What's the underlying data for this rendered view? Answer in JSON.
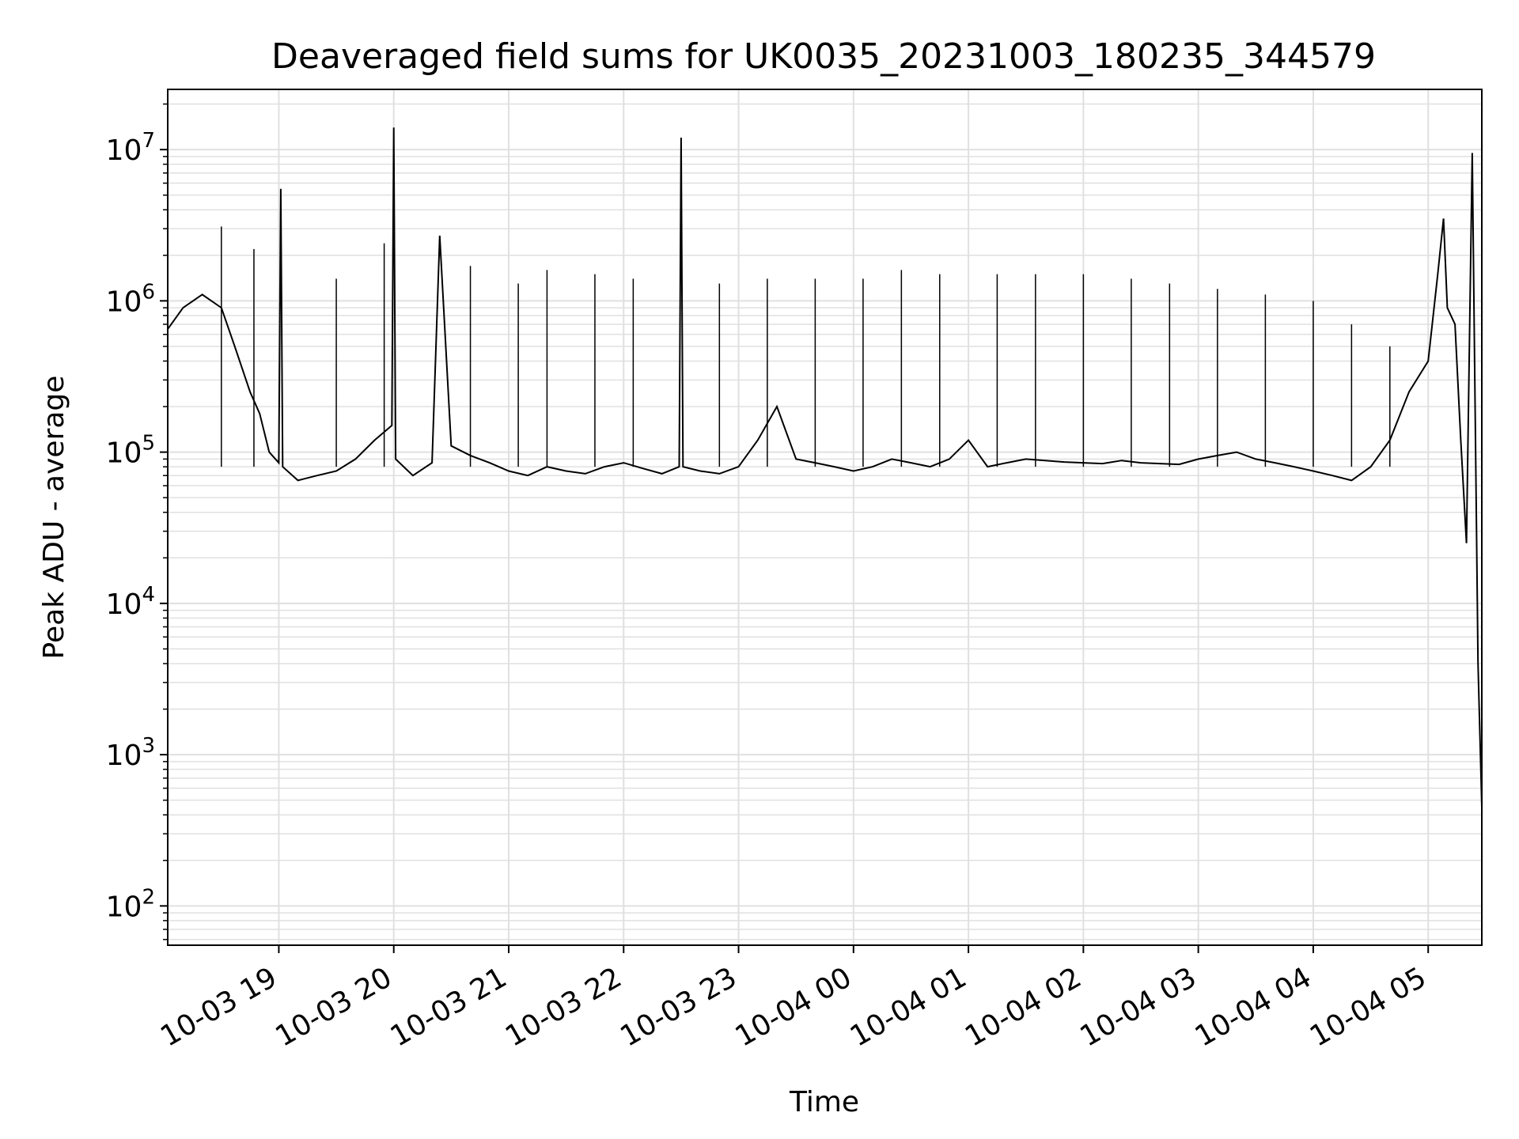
{
  "chart_data": {
    "type": "line",
    "title": "Deaveraged field sums for UK0035_20231003_180235_344579",
    "xlabel": "Time",
    "ylabel": "Peak ADU - average",
    "yscale": "log",
    "ylim": [
      55,
      25000000
    ],
    "xlim": [
      "2023-10-03 18:02",
      "2023-10-04 05:28"
    ],
    "grid": true,
    "line_color": "#000000",
    "grid_color": "#e0e0e0",
    "x_ticks": [
      {
        "t": "2023-10-03 19:00",
        "label": "10-03 19"
      },
      {
        "t": "2023-10-03 20:00",
        "label": "10-03 20"
      },
      {
        "t": "2023-10-03 21:00",
        "label": "10-03 21"
      },
      {
        "t": "2023-10-03 22:00",
        "label": "10-03 22"
      },
      {
        "t": "2023-10-03 23:00",
        "label": "10-03 23"
      },
      {
        "t": "2023-10-04 00:00",
        "label": "10-04 00"
      },
      {
        "t": "2023-10-04 01:00",
        "label": "10-04 01"
      },
      {
        "t": "2023-10-04 02:00",
        "label": "10-04 02"
      },
      {
        "t": "2023-10-04 03:00",
        "label": "10-04 03"
      },
      {
        "t": "2023-10-04 04:00",
        "label": "10-04 04"
      },
      {
        "t": "2023-10-04 05:00",
        "label": "10-04 05"
      }
    ],
    "y_ticks": [
      {
        "value": 100,
        "base": "10",
        "exp": "2"
      },
      {
        "value": 1000,
        "base": "10",
        "exp": "3"
      },
      {
        "value": 10000,
        "base": "10",
        "exp": "4"
      },
      {
        "value": 100000,
        "base": "10",
        "exp": "5"
      },
      {
        "value": 1000000,
        "base": "10",
        "exp": "6"
      },
      {
        "value": 10000000,
        "base": "10",
        "exp": "7"
      }
    ],
    "series": [
      {
        "name": "",
        "x": [
          "2023-10-03 18:02",
          "2023-10-03 18:10",
          "2023-10-03 18:20",
          "2023-10-03 18:30",
          "2023-10-03 18:37",
          "2023-10-03 18:45",
          "2023-10-03 18:50",
          "2023-10-03 18:55",
          "2023-10-03 19:00",
          "2023-10-03 19:01",
          "2023-10-03 19:02",
          "2023-10-03 19:10",
          "2023-10-03 19:20",
          "2023-10-03 19:30",
          "2023-10-03 19:40",
          "2023-10-03 19:50",
          "2023-10-03 19:59",
          "2023-10-03 20:00",
          "2023-10-03 20:01",
          "2023-10-03 20:10",
          "2023-10-03 20:20",
          "2023-10-03 20:24",
          "2023-10-03 20:30",
          "2023-10-03 20:40",
          "2023-10-03 20:50",
          "2023-10-03 21:00",
          "2023-10-03 21:10",
          "2023-10-03 21:20",
          "2023-10-03 21:30",
          "2023-10-03 21:40",
          "2023-10-03 21:50",
          "2023-10-03 22:00",
          "2023-10-03 22:10",
          "2023-10-03 22:20",
          "2023-10-03 22:29",
          "2023-10-03 22:30",
          "2023-10-03 22:31",
          "2023-10-03 22:40",
          "2023-10-03 22:50",
          "2023-10-03 23:00",
          "2023-10-03 23:10",
          "2023-10-03 23:20",
          "2023-10-03 23:30",
          "2023-10-03 23:40",
          "2023-10-03 23:50",
          "2023-10-04 00:00",
          "2023-10-04 00:10",
          "2023-10-04 00:20",
          "2023-10-04 00:30",
          "2023-10-04 00:40",
          "2023-10-04 00:50",
          "2023-10-04 01:00",
          "2023-10-04 01:10",
          "2023-10-04 01:20",
          "2023-10-04 01:30",
          "2023-10-04 01:40",
          "2023-10-04 01:50",
          "2023-10-04 02:00",
          "2023-10-04 02:10",
          "2023-10-04 02:20",
          "2023-10-04 02:30",
          "2023-10-04 02:40",
          "2023-10-04 02:50",
          "2023-10-04 03:00",
          "2023-10-04 03:10",
          "2023-10-04 03:20",
          "2023-10-04 03:30",
          "2023-10-04 03:40",
          "2023-10-04 03:50",
          "2023-10-04 04:00",
          "2023-10-04 04:10",
          "2023-10-04 04:20",
          "2023-10-04 04:30",
          "2023-10-04 04:40",
          "2023-10-04 04:50",
          "2023-10-04 05:00",
          "2023-10-04 05:05",
          "2023-10-04 05:08",
          "2023-10-04 05:10",
          "2023-10-04 05:14",
          "2023-10-04 05:17",
          "2023-10-04 05:20",
          "2023-10-04 05:23",
          "2023-10-04 05:26",
          "2023-10-04 05:28"
        ],
        "y": [
          650000,
          900000,
          1100000,
          900000,
          500000,
          250000,
          180000,
          100000,
          85000,
          5500000,
          80000,
          65000,
          70000,
          75000,
          90000,
          120000,
          150000,
          14000000,
          90000,
          70000,
          85000,
          2700000,
          110000,
          95000,
          85000,
          75000,
          70000,
          80000,
          75000,
          72000,
          80000,
          85000,
          78000,
          72000,
          80000,
          12000000,
          80000,
          75000,
          72000,
          80000,
          120000,
          200000,
          90000,
          85000,
          80000,
          75000,
          80000,
          90000,
          85000,
          80000,
          90000,
          120000,
          80000,
          85000,
          90000,
          88000,
          86000,
          85000,
          84000,
          88000,
          85000,
          84000,
          83000,
          90000,
          95000,
          100000,
          90000,
          85000,
          80000,
          75000,
          70000,
          65000,
          80000,
          120000,
          250000,
          400000,
          1500000,
          3500000,
          900000,
          700000,
          120000,
          25000,
          9500000,
          4000,
          450
        ]
      }
    ],
    "spikes": [
      {
        "x": "2023-10-03 18:30",
        "y": 3100000
      },
      {
        "x": "2023-10-03 18:47",
        "y": 2200000
      },
      {
        "x": "2023-10-03 19:30",
        "y": 1400000
      },
      {
        "x": "2023-10-03 19:55",
        "y": 2400000
      },
      {
        "x": "2023-10-03 20:40",
        "y": 1700000
      },
      {
        "x": "2023-10-03 21:05",
        "y": 1300000
      },
      {
        "x": "2023-10-03 21:20",
        "y": 1600000
      },
      {
        "x": "2023-10-03 21:45",
        "y": 1500000
      },
      {
        "x": "2023-10-03 22:05",
        "y": 1400000
      },
      {
        "x": "2023-10-03 22:50",
        "y": 1300000
      },
      {
        "x": "2023-10-03 23:15",
        "y": 1400000
      },
      {
        "x": "2023-10-03 23:40",
        "y": 1400000
      },
      {
        "x": "2023-10-04 00:05",
        "y": 1400000
      },
      {
        "x": "2023-10-04 00:25",
        "y": 1600000
      },
      {
        "x": "2023-10-04 00:45",
        "y": 1500000
      },
      {
        "x": "2023-10-04 01:15",
        "y": 1500000
      },
      {
        "x": "2023-10-04 01:35",
        "y": 1500000
      },
      {
        "x": "2023-10-04 02:00",
        "y": 1500000
      },
      {
        "x": "2023-10-04 02:25",
        "y": 1400000
      },
      {
        "x": "2023-10-04 02:45",
        "y": 1300000
      },
      {
        "x": "2023-10-04 03:10",
        "y": 1200000
      },
      {
        "x": "2023-10-04 03:35",
        "y": 1100000
      },
      {
        "x": "2023-10-04 04:00",
        "y": 1000000
      },
      {
        "x": "2023-10-04 04:20",
        "y": 700000
      },
      {
        "x": "2023-10-04 04:40",
        "y": 500000
      }
    ]
  }
}
